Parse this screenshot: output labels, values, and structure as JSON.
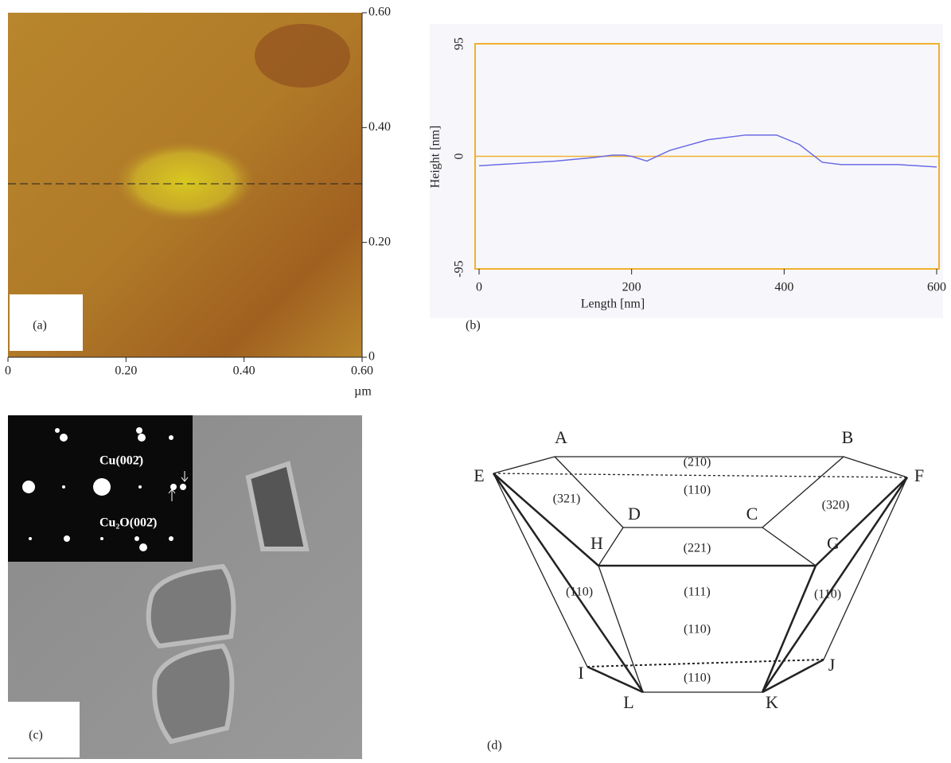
{
  "panel_a": {
    "label": "(a)",
    "unit": "µm",
    "xticks": [
      0,
      {
        "value": 0.2,
        "label": "0.20"
      },
      {
        "value": 0.4,
        "label": "0.40"
      },
      {
        "value": 0.6,
        "label": "0.60"
      }
    ],
    "yticks": [
      0,
      {
        "value": 0.2,
        "label": "0.20"
      },
      {
        "value": 0.4,
        "label": "0.40"
      },
      {
        "value": 0.6,
        "label": "0.60"
      }
    ],
    "xlim": [
      0,
      0.6
    ],
    "ylim": [
      0,
      0.6
    ]
  },
  "chart_data": {
    "type": "line",
    "label": "(b)",
    "x_label": "Length [nm]",
    "y_label": "Height [nm]",
    "x": [
      0,
      50,
      100,
      150,
      175,
      190,
      200,
      220,
      250,
      300,
      350,
      390,
      420,
      450,
      475,
      500,
      550,
      600
    ],
    "series": [
      {
        "color": "#6a6ae6",
        "values": [
          -8,
          -6,
          -4,
          -1,
          1,
          1,
          0,
          -4,
          5,
          14,
          18,
          18,
          10,
          -5,
          -7,
          -7,
          -7,
          -9
        ]
      }
    ],
    "xlim": [
      0,
      600
    ],
    "ylim": [
      -95,
      95
    ],
    "xticks": [
      0,
      200,
      400,
      600
    ],
    "yticks": [
      -95,
      0,
      95
    ],
    "axis_color": "#f0b030"
  },
  "panel_c": {
    "label": "(c)",
    "inset_labels": [
      "Cu(002̄)",
      "Cu₂O(002̄)"
    ]
  },
  "panel_d": {
    "label": "(d)",
    "vertices": [
      "A",
      "B",
      "E",
      "F",
      "D",
      "C",
      "H",
      "G",
      "I",
      "J",
      "L",
      "K"
    ],
    "faces": [
      "(210)",
      "(110)",
      "(321)",
      "(320)",
      "(221)",
      "(111)",
      "(110)",
      "(110)",
      "(110)",
      "(110)"
    ]
  }
}
